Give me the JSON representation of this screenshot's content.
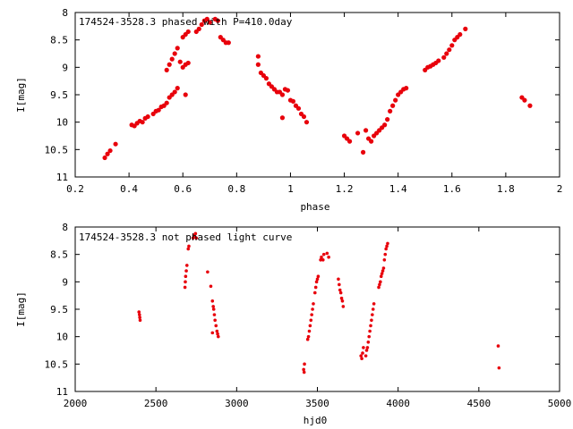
{
  "chart_data": [
    {
      "type": "scatter",
      "title": "174524-3528.3 phased with P=410.0day",
      "xlabel": "phase",
      "ylabel": "I[mag]",
      "xlim": [
        0.2,
        2
      ],
      "ylim": [
        8,
        11
      ],
      "y_inverted": true,
      "grid": false,
      "color": "#e8000b",
      "xticks": [
        "0.2",
        "0.4",
        "0.6",
        "0.8",
        "1",
        "1.2",
        "1.4",
        "1.6",
        "1.8",
        "2"
      ],
      "yticks": [
        "8",
        "8.5",
        "9",
        "9.5",
        "10",
        "10.5",
        "11"
      ],
      "points": [
        [
          0.31,
          10.65
        ],
        [
          0.32,
          10.58
        ],
        [
          0.33,
          10.52
        ],
        [
          0.35,
          10.4
        ],
        [
          0.41,
          10.05
        ],
        [
          0.42,
          10.07
        ],
        [
          0.43,
          10.02
        ],
        [
          0.44,
          9.98
        ],
        [
          0.45,
          10.0
        ],
        [
          0.46,
          9.93
        ],
        [
          0.47,
          9.9
        ],
        [
          0.49,
          9.85
        ],
        [
          0.5,
          9.8
        ],
        [
          0.51,
          9.78
        ],
        [
          0.52,
          9.72
        ],
        [
          0.53,
          9.7
        ],
        [
          0.54,
          9.65
        ],
        [
          0.55,
          9.55
        ],
        [
          0.56,
          9.5
        ],
        [
          0.57,
          9.45
        ],
        [
          0.58,
          9.38
        ],
        [
          0.54,
          9.05
        ],
        [
          0.55,
          8.95
        ],
        [
          0.56,
          8.85
        ],
        [
          0.57,
          8.75
        ],
        [
          0.58,
          8.65
        ],
        [
          0.59,
          8.9
        ],
        [
          0.6,
          9.0
        ],
        [
          0.61,
          8.95
        ],
        [
          0.62,
          8.92
        ],
        [
          0.61,
          9.5
        ],
        [
          0.6,
          8.45
        ],
        [
          0.61,
          8.4
        ],
        [
          0.62,
          8.35
        ],
        [
          0.65,
          8.35
        ],
        [
          0.66,
          8.3
        ],
        [
          0.67,
          8.22
        ],
        [
          0.68,
          8.15
        ],
        [
          0.69,
          8.12
        ],
        [
          0.7,
          8.18
        ],
        [
          0.72,
          8.12
        ],
        [
          0.73,
          8.15
        ],
        [
          0.74,
          8.45
        ],
        [
          0.75,
          8.5
        ],
        [
          0.76,
          8.55
        ],
        [
          0.77,
          8.55
        ],
        [
          0.88,
          8.8
        ],
        [
          0.88,
          8.95
        ],
        [
          0.89,
          9.1
        ],
        [
          0.9,
          9.15
        ],
        [
          0.91,
          9.2
        ],
        [
          0.92,
          9.3
        ],
        [
          0.93,
          9.35
        ],
        [
          0.94,
          9.4
        ],
        [
          0.95,
          9.45
        ],
        [
          0.96,
          9.45
        ],
        [
          0.97,
          9.5
        ],
        [
          0.98,
          9.4
        ],
        [
          0.99,
          9.42
        ],
        [
          1.0,
          9.6
        ],
        [
          1.01,
          9.62
        ],
        [
          1.02,
          9.7
        ],
        [
          1.03,
          9.75
        ],
        [
          1.04,
          9.85
        ],
        [
          1.05,
          9.9
        ],
        [
          1.06,
          10.0
        ],
        [
          0.97,
          9.92
        ],
        [
          1.2,
          10.25
        ],
        [
          1.21,
          10.3
        ],
        [
          1.22,
          10.35
        ],
        [
          1.25,
          10.2
        ],
        [
          1.27,
          10.55
        ],
        [
          1.28,
          10.15
        ],
        [
          1.29,
          10.3
        ],
        [
          1.3,
          10.35
        ],
        [
          1.31,
          10.25
        ],
        [
          1.32,
          10.2
        ],
        [
          1.33,
          10.15
        ],
        [
          1.34,
          10.1
        ],
        [
          1.35,
          10.05
        ],
        [
          1.36,
          9.95
        ],
        [
          1.37,
          9.8
        ],
        [
          1.38,
          9.7
        ],
        [
          1.39,
          9.6
        ],
        [
          1.4,
          9.5
        ],
        [
          1.41,
          9.45
        ],
        [
          1.42,
          9.4
        ],
        [
          1.43,
          9.38
        ],
        [
          1.5,
          9.05
        ],
        [
          1.51,
          9.0
        ],
        [
          1.52,
          8.98
        ],
        [
          1.53,
          8.95
        ],
        [
          1.54,
          8.92
        ],
        [
          1.55,
          8.88
        ],
        [
          1.57,
          8.82
        ],
        [
          1.58,
          8.75
        ],
        [
          1.59,
          8.68
        ],
        [
          1.6,
          8.6
        ],
        [
          1.61,
          8.5
        ],
        [
          1.62,
          8.45
        ],
        [
          1.63,
          8.4
        ],
        [
          1.65,
          8.3
        ],
        [
          1.86,
          9.55
        ],
        [
          1.87,
          9.6
        ],
        [
          1.89,
          9.7
        ]
      ]
    },
    {
      "type": "scatter",
      "title": "174524-3528.3 not phased light curve",
      "xlabel": "hjd0",
      "ylabel": "I[mag]",
      "xlim": [
        2000,
        5000
      ],
      "ylim": [
        8,
        11
      ],
      "y_inverted": true,
      "grid": false,
      "color": "#e8000b",
      "xticks": [
        "2000",
        "2500",
        "3000",
        "3500",
        "4000",
        "4500",
        "5000"
      ],
      "yticks": [
        "8",
        "8.5",
        "9",
        "9.5",
        "10",
        "10.5",
        "11"
      ],
      "points": [
        [
          2395,
          9.55
        ],
        [
          2398,
          9.6
        ],
        [
          2400,
          9.65
        ],
        [
          2402,
          9.7
        ],
        [
          2680,
          9.1
        ],
        [
          2682,
          9.0
        ],
        [
          2684,
          8.9
        ],
        [
          2688,
          8.8
        ],
        [
          2692,
          8.7
        ],
        [
          2700,
          8.4
        ],
        [
          2704,
          8.35
        ],
        [
          2730,
          8.2
        ],
        [
          2735,
          8.15
        ],
        [
          2740,
          8.18
        ],
        [
          2745,
          8.12
        ],
        [
          2750,
          8.2
        ],
        [
          2820,
          8.82
        ],
        [
          2840,
          9.08
        ],
        [
          2850,
          9.35
        ],
        [
          2855,
          9.45
        ],
        [
          2858,
          9.5
        ],
        [
          2862,
          9.6
        ],
        [
          2866,
          9.7
        ],
        [
          2872,
          9.8
        ],
        [
          2878,
          9.9
        ],
        [
          2882,
          9.95
        ],
        [
          2886,
          10.0
        ],
        [
          2850,
          9.93
        ],
        [
          3415,
          10.6
        ],
        [
          3418,
          10.65
        ],
        [
          3420,
          10.5
        ],
        [
          3440,
          10.05
        ],
        [
          3445,
          10.0
        ],
        [
          3450,
          9.9
        ],
        [
          3455,
          9.8
        ],
        [
          3460,
          9.7
        ],
        [
          3465,
          9.6
        ],
        [
          3470,
          9.5
        ],
        [
          3475,
          9.4
        ],
        [
          3485,
          9.2
        ],
        [
          3490,
          9.1
        ],
        [
          3495,
          9.0
        ],
        [
          3500,
          8.95
        ],
        [
          3505,
          8.9
        ],
        [
          3520,
          8.6
        ],
        [
          3525,
          8.55
        ],
        [
          3535,
          8.6
        ],
        [
          3540,
          8.5
        ],
        [
          3560,
          8.48
        ],
        [
          3570,
          8.55
        ],
        [
          3630,
          8.95
        ],
        [
          3635,
          9.05
        ],
        [
          3640,
          9.15
        ],
        [
          3645,
          9.2
        ],
        [
          3650,
          9.3
        ],
        [
          3655,
          9.35
        ],
        [
          3660,
          9.45
        ],
        [
          3770,
          10.35
        ],
        [
          3775,
          10.4
        ],
        [
          3780,
          10.3
        ],
        [
          3785,
          10.2
        ],
        [
          3800,
          10.35
        ],
        [
          3805,
          10.25
        ],
        [
          3810,
          10.2
        ],
        [
          3815,
          10.1
        ],
        [
          3820,
          10.0
        ],
        [
          3825,
          9.9
        ],
        [
          3830,
          9.8
        ],
        [
          3835,
          9.7
        ],
        [
          3840,
          9.6
        ],
        [
          3845,
          9.5
        ],
        [
          3850,
          9.4
        ],
        [
          3880,
          9.1
        ],
        [
          3885,
          9.05
        ],
        [
          3890,
          9.0
        ],
        [
          3895,
          8.9
        ],
        [
          3900,
          8.85
        ],
        [
          3905,
          8.8
        ],
        [
          3910,
          8.75
        ],
        [
          3915,
          8.6
        ],
        [
          3920,
          8.5
        ],
        [
          3925,
          8.4
        ],
        [
          3930,
          8.35
        ],
        [
          3935,
          8.3
        ],
        [
          4620,
          10.17
        ],
        [
          4625,
          10.57
        ]
      ]
    }
  ]
}
